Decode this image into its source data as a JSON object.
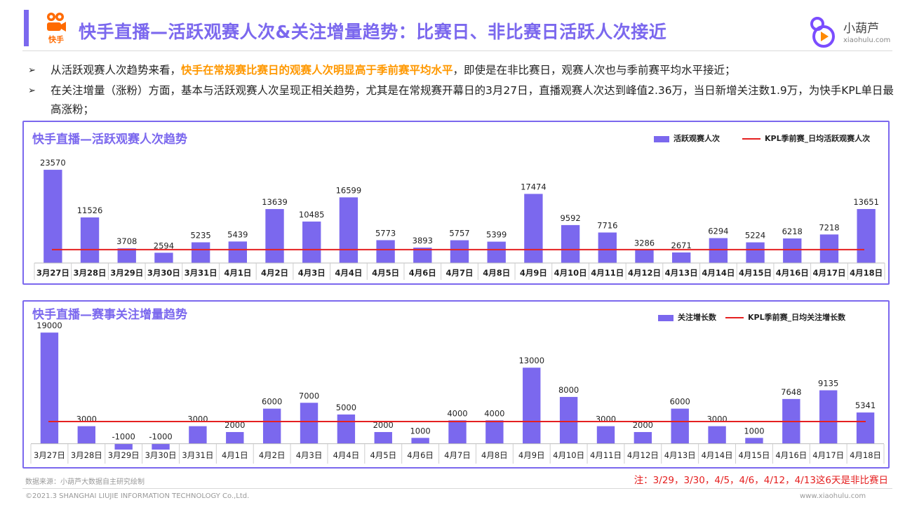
{
  "header": {
    "title": "快手直播—活跃观赛人次&关注增量趋势：比赛日、非比赛日活跃人次接近",
    "brand_left": "快手",
    "brand_right_name": "小葫芦",
    "brand_right_url": "xiaohulu.com",
    "accent_color": "#7B68EE"
  },
  "bullets": {
    "b1_pre": "从活跃观赛人次趋势来看，",
    "b1_hl": "快手在常规赛比赛日的观赛人次明显高于季前赛平均水平",
    "b1_post": "，即使是在非比赛日，观赛人次也与季前赛平均水平接近；",
    "b2": "在关注增量（涨粉）方面，基本与活跃观赛人次呈现正相关趋势，尤其是在常规赛开幕日的3月27日，直播观赛人次达到峰值2.36万，当日新增关注数1.9万，为快手KPL单日最高涨粉；"
  },
  "chart_data": [
    {
      "type": "bar",
      "title": "快手直播—活跃观赛人次趋势",
      "categories": [
        "3月27日",
        "3月28日",
        "3月29日",
        "3月30日",
        "3月31日",
        "4月1日",
        "4月2日",
        "4月3日",
        "4月4日",
        "4月5日",
        "4月6日",
        "4月7日",
        "4月8日",
        "4月9日",
        "4月10日",
        "4月11日",
        "4月12日",
        "4月13日",
        "4月14日",
        "4月15日",
        "4月16日",
        "4月17日",
        "4月18日"
      ],
      "series": [
        {
          "name": "活跃观赛人次",
          "values": [
            23570,
            11526,
            3708,
            2594,
            5235,
            5439,
            13639,
            10485,
            16599,
            5773,
            3893,
            5757,
            5399,
            17474,
            9592,
            7716,
            3286,
            2671,
            6294,
            5224,
            6218,
            7218,
            13651
          ],
          "color": "#7B68EE"
        }
      ],
      "reference_line": {
        "name": "KPL季前赛_日均活跃观赛人次",
        "value": 3400,
        "color": "#E52020"
      },
      "ylim": [
        0,
        25000
      ],
      "legend": "top-right",
      "grid": false
    },
    {
      "type": "bar",
      "title": "快手直播—赛事关注增量趋势",
      "categories": [
        "3月27日",
        "3月28日",
        "3月29日",
        "3月30日",
        "3月31日",
        "4月1日",
        "4月2日",
        "4月3日",
        "4月4日",
        "4月5日",
        "4月6日",
        "4月7日",
        "4月8日",
        "4月9日",
        "4月10日",
        "4月11日",
        "4月12日",
        "4月13日",
        "4月14日",
        "4月15日",
        "4月16日",
        "4月17日",
        "4月18日"
      ],
      "series": [
        {
          "name": "关注增长数",
          "values": [
            19000,
            3000,
            -1000,
            -1000,
            3000,
            2000,
            6000,
            7000,
            5000,
            2000,
            1000,
            4000,
            4000,
            13000,
            8000,
            3000,
            2000,
            6000,
            3000,
            1000,
            7648,
            9135,
            5341
          ],
          "color": "#7B68EE"
        }
      ],
      "reference_line": {
        "name": "KPL季前赛_日均关注增长数",
        "value": 3800,
        "color": "#E52020"
      },
      "ylim": [
        -1000,
        19500
      ],
      "legend": "top-right",
      "grid": false
    }
  ],
  "footer": {
    "source": "数据来源：小葫芦大数据自主研究绘制",
    "note": "注：3/29，3/30，4/5，4/6，4/12，4/13这6天是非比赛日",
    "copyright": "©2021.3 SHANGHAI LIUJIE INFORMATION  TECHNOLOGY Co.,Ltd.",
    "website": "www.xiaohulu.com"
  }
}
